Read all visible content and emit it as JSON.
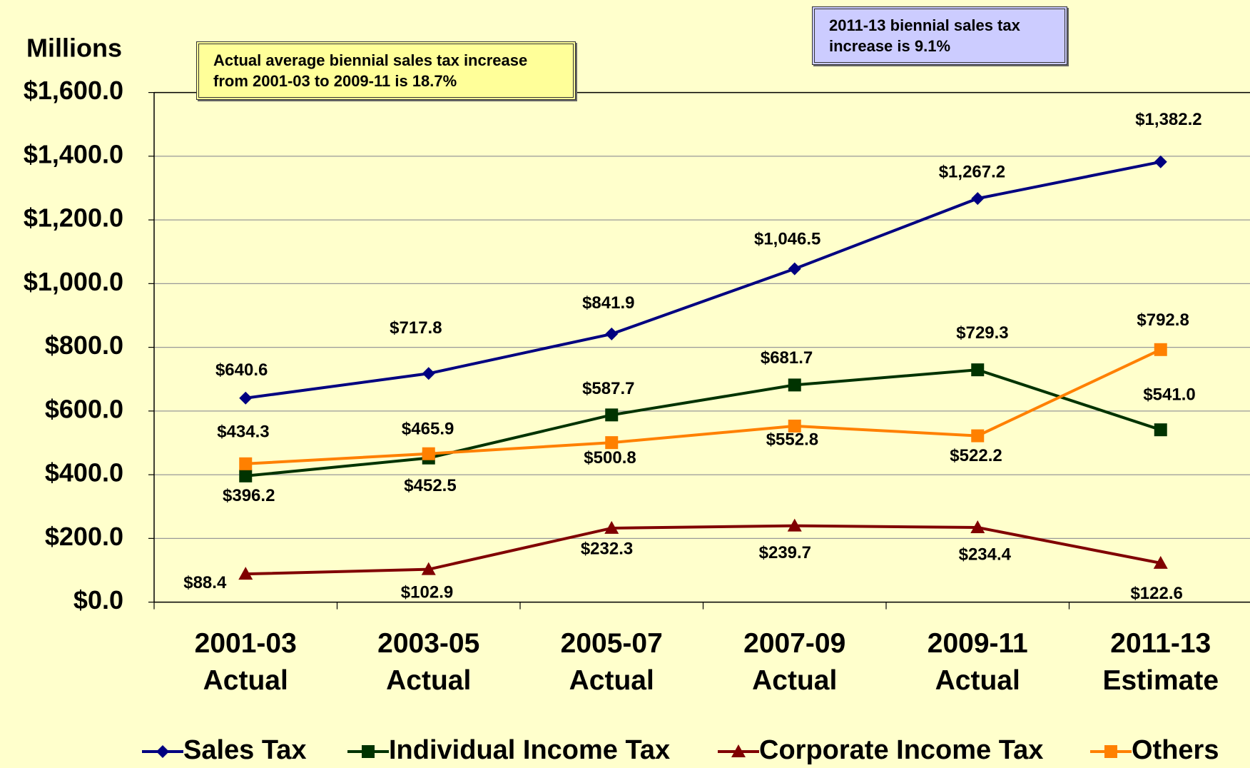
{
  "chart_data": {
    "type": "line",
    "y_axis_label": "Millions",
    "annotations": [
      "Actual average biennial sales tax increase from 2001-03 to 2009-11 is 18.7%",
      "2011-13 biennial sales tax increase is 9.1%"
    ],
    "categories": [
      "2001-03 Actual",
      "2003-05 Actual",
      "2005-07 Actual",
      "2007-09 Actual",
      "2009-11 Actual",
      "2011-13 Estimate"
    ],
    "ylim": [
      0,
      1600
    ],
    "yticks": [
      {
        "value": 0,
        "label": "$0.0"
      },
      {
        "value": 200,
        "label": "$200.0"
      },
      {
        "value": 400,
        "label": "$400.0"
      },
      {
        "value": 600,
        "label": "$600.0"
      },
      {
        "value": 800,
        "label": "$800.0"
      },
      {
        "value": 1000,
        "label": "$1,000.0"
      },
      {
        "value": 1200,
        "label": "$1,200.0"
      },
      {
        "value": 1400,
        "label": "$1,400.0"
      },
      {
        "value": 1600,
        "label": "$1,600.0"
      }
    ],
    "grid": true,
    "legend": "bottom",
    "series": [
      {
        "name": "Sales Tax",
        "color": "#000080",
        "marker": "diamond",
        "values": [
          640.6,
          717.8,
          841.9,
          1046.5,
          1267.2,
          1382.2
        ],
        "value_labels": [
          "$640.6",
          "$717.8",
          "$841.9",
          "$1,046.5",
          "$1,267.2",
          "$1,382.2"
        ]
      },
      {
        "name": "Individual Income Tax",
        "color": "#003300",
        "marker": "square",
        "values": [
          396.2,
          452.5,
          587.7,
          681.7,
          729.3,
          541.0
        ],
        "value_labels": [
          "$396.2",
          "$452.5",
          "$587.7",
          "$681.7",
          "$729.3",
          "$541.0"
        ]
      },
      {
        "name": "Corporate Income Tax",
        "color": "#800000",
        "marker": "triangle",
        "values": [
          88.4,
          102.9,
          232.3,
          239.7,
          234.4,
          122.6
        ],
        "value_labels": [
          "$88.4",
          "$102.9",
          "$232.3",
          "$239.7",
          "$234.4",
          "$122.6"
        ]
      },
      {
        "name": "Others",
        "color": "#ff8000",
        "marker": "square",
        "values": [
          434.3,
          465.9,
          500.8,
          552.8,
          522.2,
          792.8
        ],
        "value_labels": [
          "$434.3",
          "$465.9",
          "$500.8",
          "$552.8",
          "$522.2",
          "$792.8"
        ]
      }
    ]
  }
}
